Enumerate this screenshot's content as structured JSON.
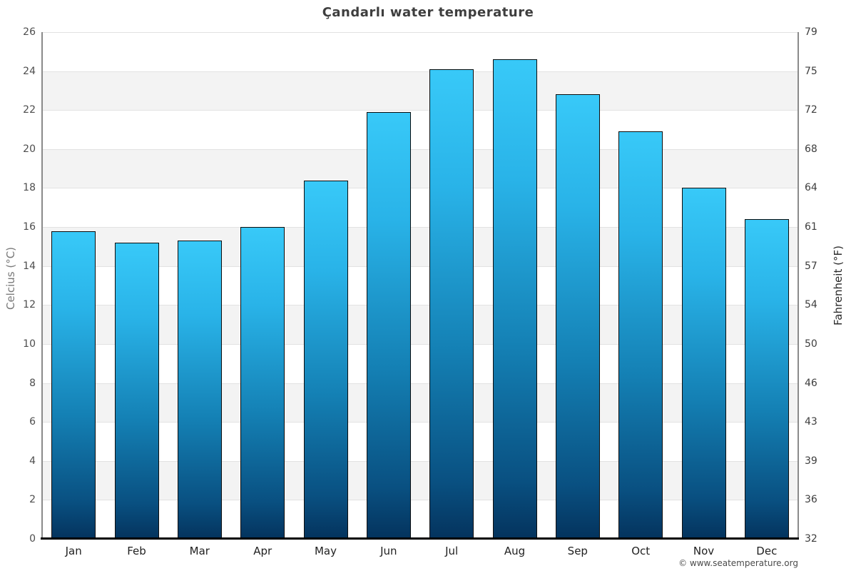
{
  "chart_data": {
    "type": "bar",
    "title": "Çandarlı water temperature",
    "categories": [
      "Jan",
      "Feb",
      "Mar",
      "Apr",
      "May",
      "Jun",
      "Jul",
      "Aug",
      "Sep",
      "Oct",
      "Nov",
      "Dec"
    ],
    "values": [
      15.8,
      15.2,
      15.3,
      16.0,
      18.4,
      21.9,
      24.1,
      24.6,
      22.8,
      20.9,
      18.0,
      16.4
    ],
    "series_name": "Water temperature (°C)",
    "ylabel_left": "Celcius (°C)",
    "ylabel_right": "Fahrenheit (°F)",
    "ylim": [
      0,
      26
    ],
    "yticks_left": [
      0,
      2,
      4,
      6,
      8,
      10,
      12,
      14,
      16,
      18,
      20,
      22,
      24,
      26
    ],
    "yticks_right": [
      32,
      36,
      39,
      43,
      46,
      50,
      54,
      57,
      61,
      64,
      68,
      72,
      75,
      79
    ],
    "grid": "horizontal gridlines every 2°C with alternating white/gray bands",
    "legend": "none"
  },
  "footer": {
    "copyright": "© www.seatemperature.org"
  },
  "colors": {
    "bar_top": "#38c9f8",
    "bar_upper": "#29b3e8",
    "bar_mid": "#1480b4",
    "bar_low": "#095081",
    "bar_bottom": "#04335d",
    "bar_border": "#0d0d0d",
    "band_gray": "#f3f3f3",
    "gridline": "#e2e2e2",
    "axis_line": "#8a8a8a",
    "bottom_axis": "#000000",
    "title_text": "#3e3e3e"
  }
}
